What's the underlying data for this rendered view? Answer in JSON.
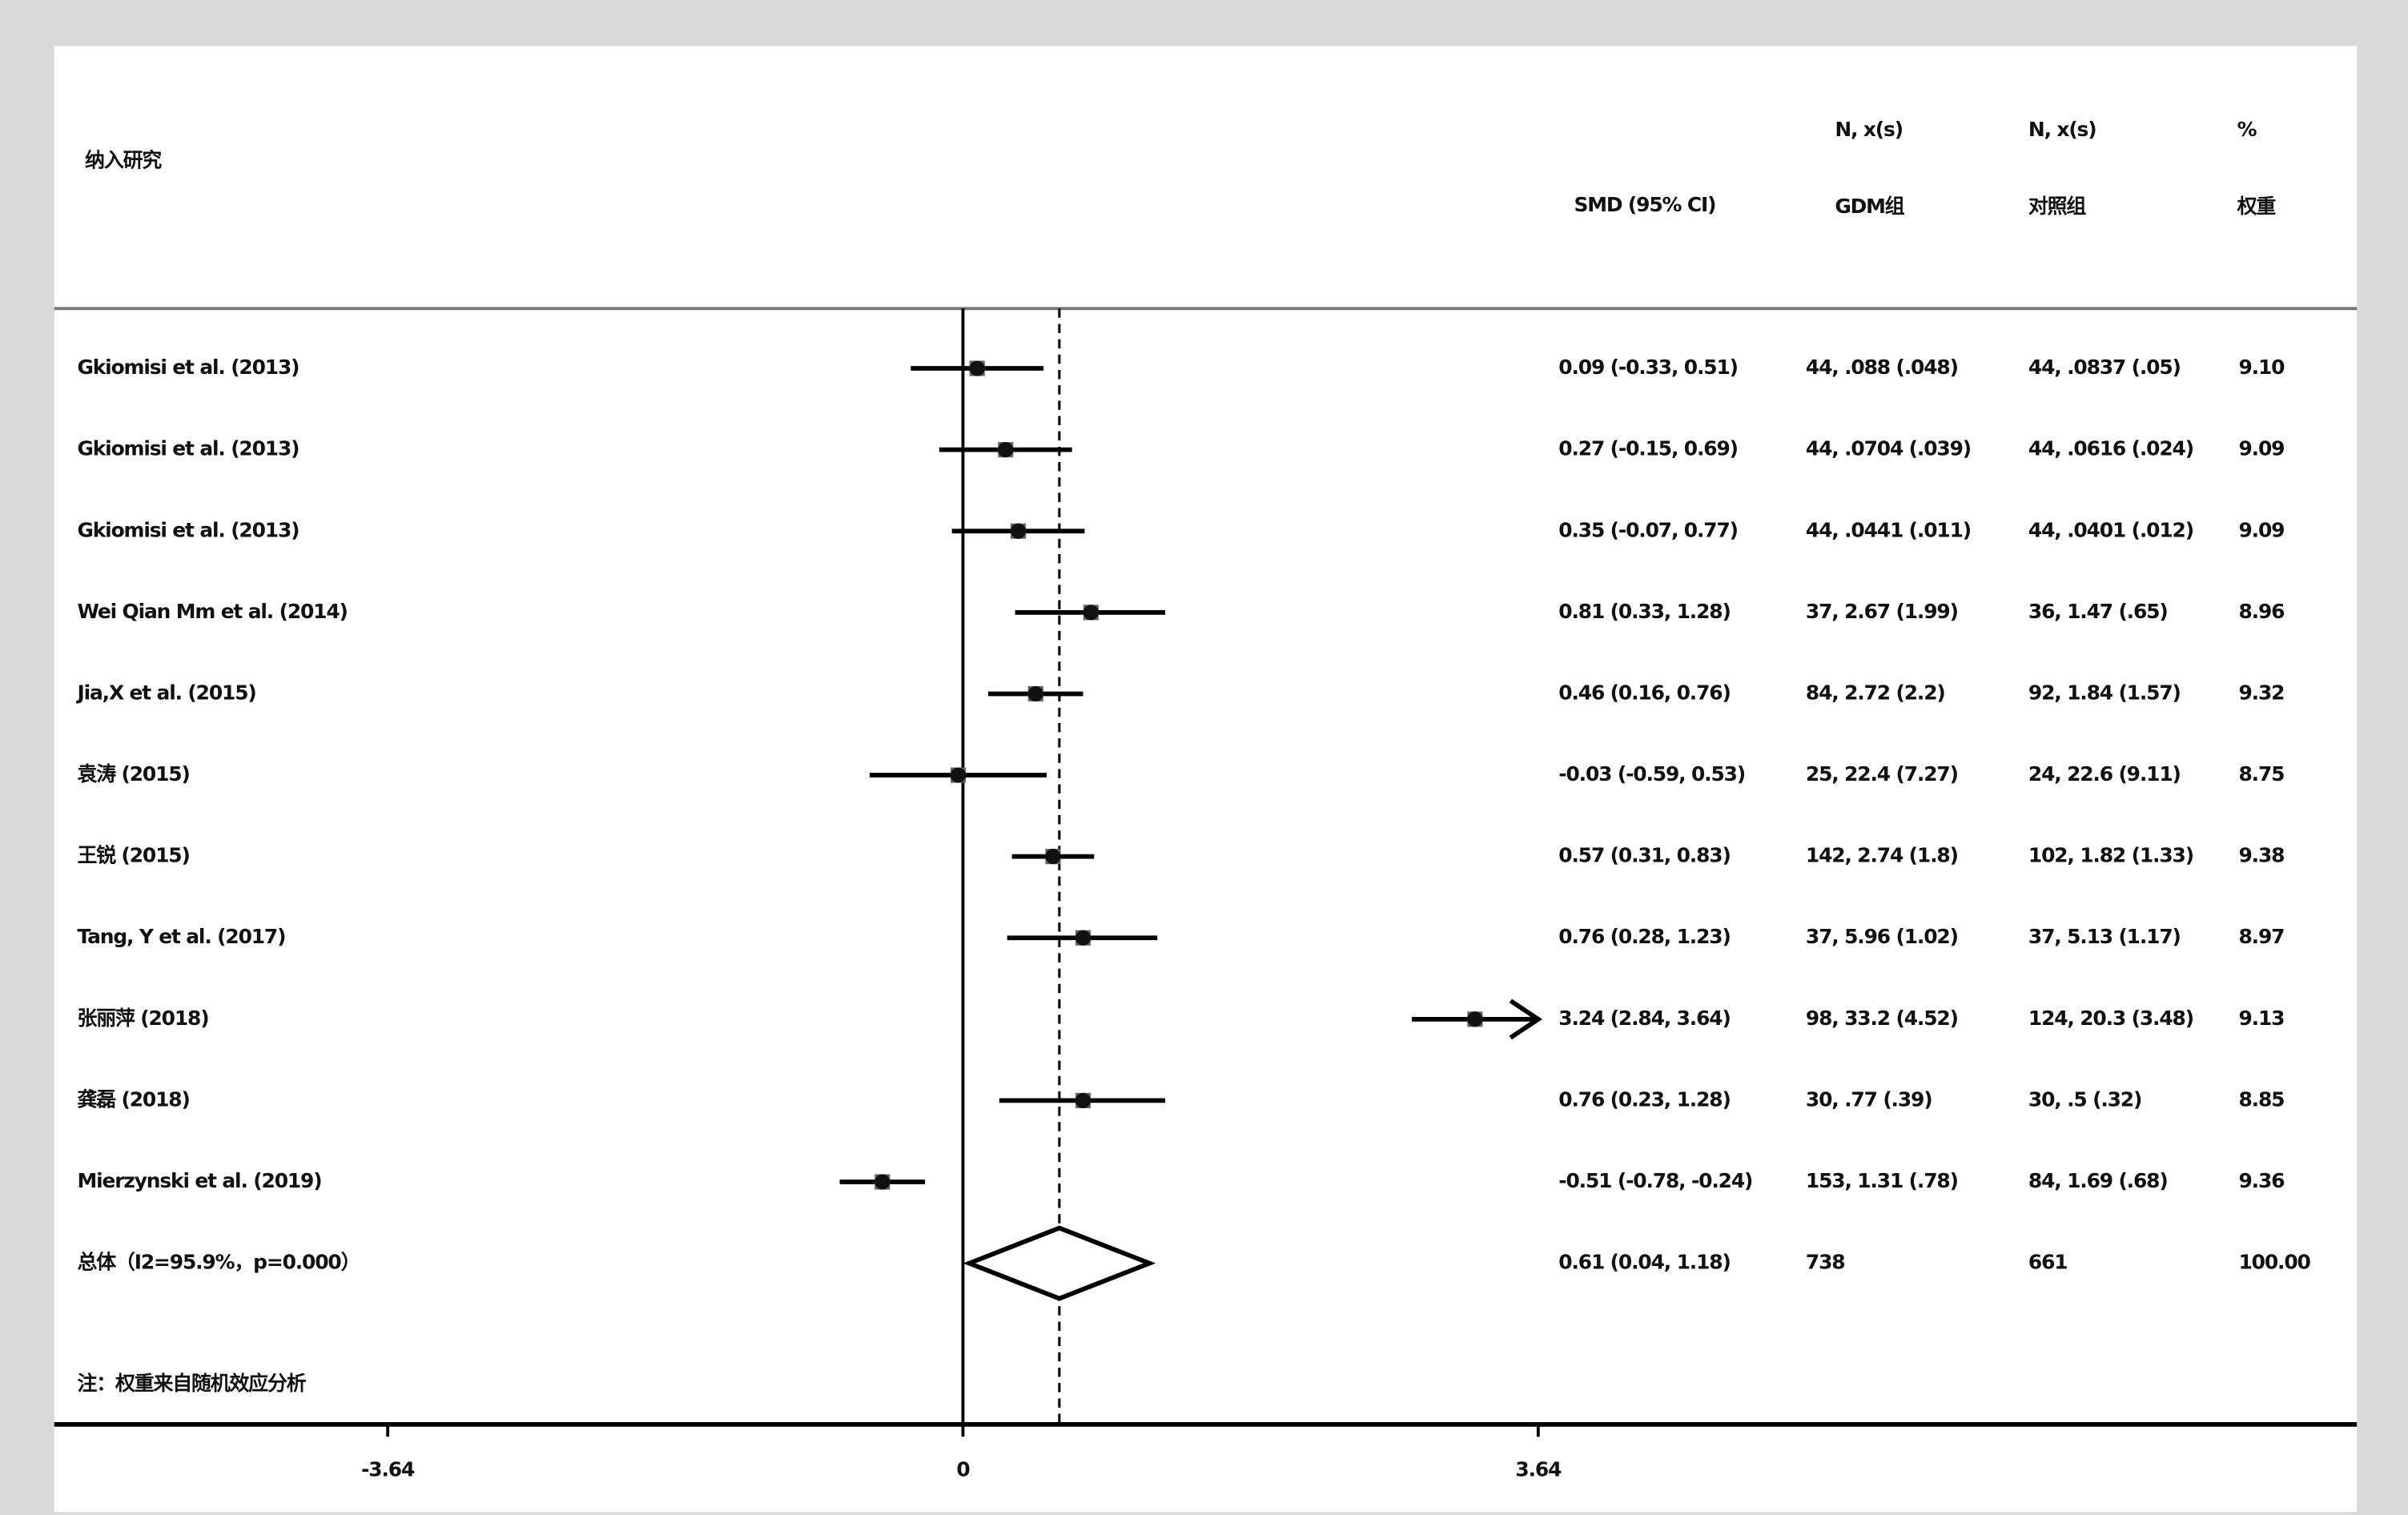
{
  "chart_data": {
    "type": "forest",
    "study_header": "纳入研究",
    "smd_header": "SMD (95% CI)",
    "gdm_header": [
      "N, x(s)",
      "GDM组"
    ],
    "control_header": [
      "N, x(s)",
      "对照组"
    ],
    "weight_header": [
      "%",
      "权重"
    ],
    "studies": [
      "Gkiomisi et al. (2013)",
      "Gkiomisi et al. (2013)",
      "Gkiomisi et al. (2013)",
      "Wei Qian Mm et al. (2014)",
      "Jia,X et al. (2015)",
      "袁涛 (2015)",
      "王锐 (2015)",
      "Tang, Y et al. (2017)",
      "张丽萍 (2018)",
      "龚磊 (2018)",
      "Mierzynski et al. (2019)"
    ],
    "values": [
      0.09,
      0.27,
      0.35,
      0.81,
      0.46,
      -0.03,
      0.57,
      0.76,
      3.24,
      0.76,
      -0.51
    ],
    "lower": [
      -0.33,
      -0.15,
      -0.07,
      0.33,
      0.16,
      -0.59,
      0.31,
      0.28,
      2.84,
      0.23,
      -0.78
    ],
    "upper": [
      0.51,
      0.69,
      0.77,
      1.28,
      0.76,
      0.53,
      0.83,
      1.23,
      3.64,
      1.28,
      -0.24
    ],
    "value_labels": [
      "0.09 (-0.33, 0.51)",
      "0.27 (-0.15, 0.69)",
      "0.35 (-0.07, 0.77)",
      "0.81 (0.33, 1.28)",
      "0.46 (0.16, 0.76)",
      "-0.03 (-0.59, 0.53)",
      "0.57 (0.31, 0.83)",
      "0.76 (0.28, 1.23)",
      "3.24 (2.84, 3.64)",
      "0.76 (0.23, 1.28)",
      "-0.51 (-0.78, -0.24)"
    ],
    "gdm": [
      "44, .088 (.048)",
      "44, .0704 (.039)",
      "44, .0441 (.011)",
      "37, 2.67 (1.99)",
      "84, 2.72 (2.2)",
      "25, 22.4 (7.27)",
      "142, 2.74 (1.8)",
      "37, 5.96 (1.02)",
      "98, 33.2 (4.52)",
      "30, .77 (.39)",
      "153, 1.31 (.78)"
    ],
    "control": [
      "44, .0837 (.05)",
      "44, .0616 (.024)",
      "44, .0401 (.012)",
      "36, 1.47 (.65)",
      "92, 1.84 (1.57)",
      "24, 22.6 (9.11)",
      "102, 1.82 (1.33)",
      "37, 5.13 (1.17)",
      "124, 20.3 (3.48)",
      "30, .5 (.32)",
      "84, 1.69 (.68)"
    ],
    "weights": [
      "9.10",
      "9.09",
      "9.09",
      "8.96",
      "9.32",
      "8.75",
      "9.38",
      "8.97",
      "9.13",
      "8.85",
      "9.36"
    ],
    "overall": {
      "label": "总体（I2=95.9%，p=0.000）",
      "value": 0.61,
      "lower": 0.04,
      "upper": 1.18,
      "value_label": "0.61 (0.04, 1.18)",
      "gdm": "738",
      "control": "661",
      "weight": "100.00"
    },
    "note": "注：权重来自随机效应分析",
    "xlim": [
      -5.75,
      8.82
    ],
    "xticks": [
      -3.64,
      0,
      3.64
    ]
  }
}
